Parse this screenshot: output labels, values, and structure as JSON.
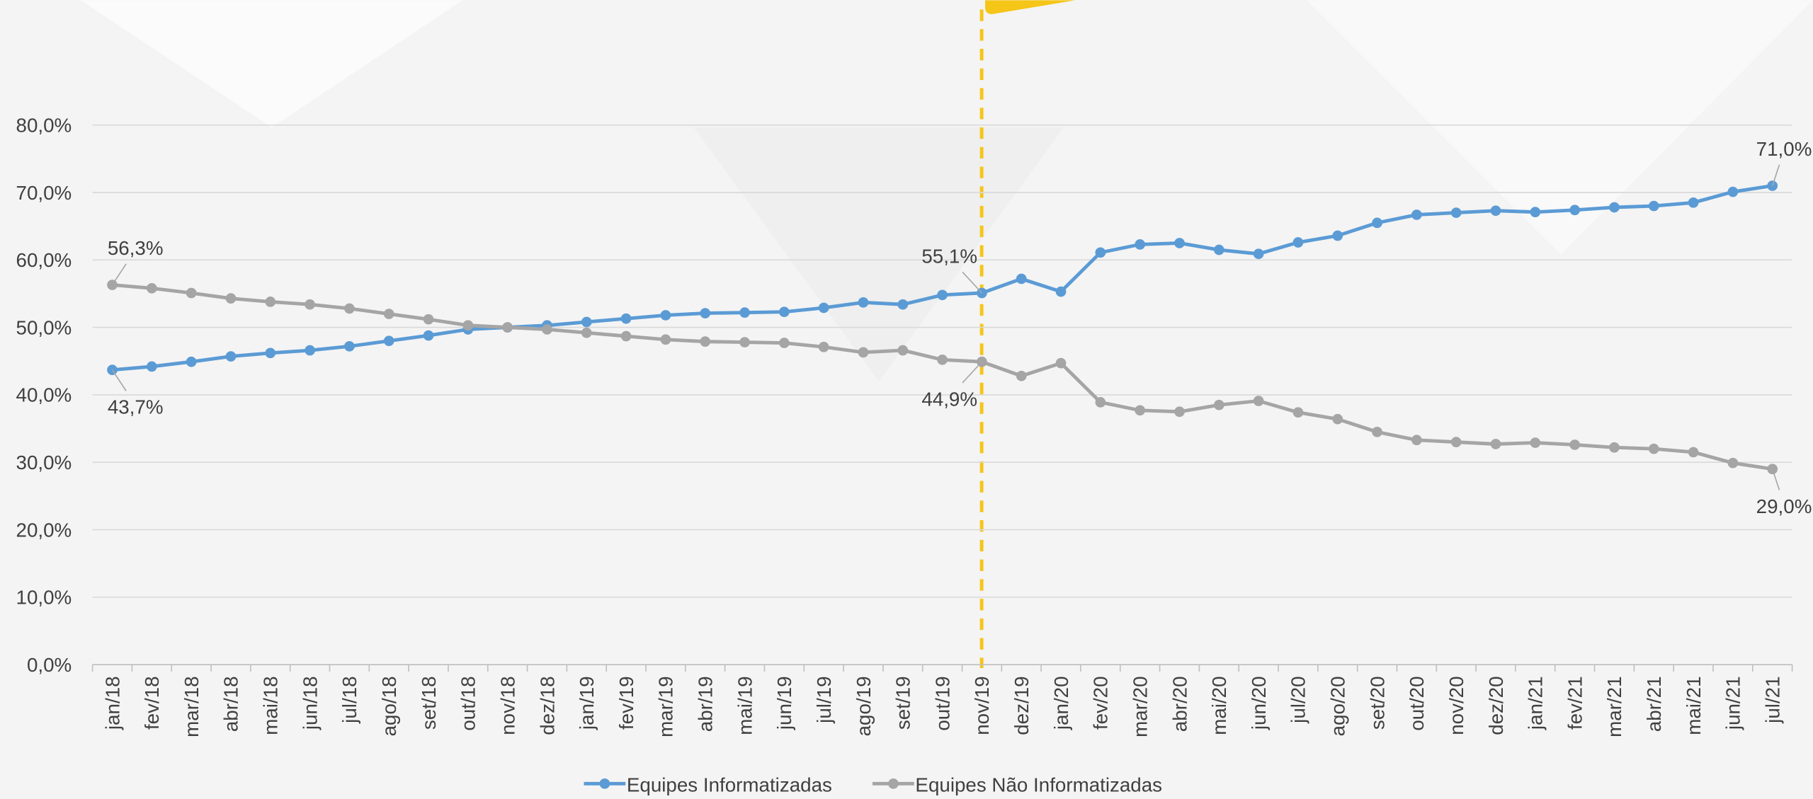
{
  "chart_data": {
    "type": "line",
    "categories": [
      "jan/18",
      "fev/18",
      "mar/18",
      "abr/18",
      "mai/18",
      "jun/18",
      "jul/18",
      "ago/18",
      "set/18",
      "out/18",
      "nov/18",
      "dez/18",
      "jan/19",
      "fev/19",
      "mar/19",
      "abr/19",
      "mai/19",
      "jun/19",
      "jul/19",
      "ago/19",
      "set/19",
      "out/19",
      "nov/19",
      "dez/19",
      "jan/20",
      "fev/20",
      "mar/20",
      "abr/20",
      "mai/20",
      "jun/20",
      "jul/20",
      "ago/20",
      "set/20",
      "out/20",
      "nov/20",
      "dez/20",
      "jan/21",
      "fev/21",
      "mar/21",
      "abr/21",
      "mai/21",
      "jun/21",
      "jul/21"
    ],
    "series": [
      {
        "name": "Equipes Informatizadas",
        "color": "#5b9bd5",
        "values": [
          43.7,
          44.2,
          44.9,
          45.7,
          46.2,
          46.6,
          47.2,
          48.0,
          48.8,
          49.7,
          50.0,
          50.3,
          50.8,
          51.3,
          51.8,
          52.1,
          52.2,
          52.3,
          52.9,
          53.7,
          53.4,
          54.8,
          55.1,
          57.2,
          55.3,
          61.1,
          62.3,
          62.5,
          61.5,
          60.9,
          62.6,
          63.6,
          65.5,
          66.7,
          67.0,
          67.3,
          67.1,
          67.4,
          67.8,
          68.0,
          68.5,
          70.1,
          71.0
        ],
        "value_labels": [
          "43,7%",
          null,
          null,
          null,
          null,
          null,
          null,
          null,
          null,
          null,
          null,
          null,
          null,
          null,
          null,
          null,
          null,
          null,
          null,
          null,
          null,
          null,
          "55,1%",
          null,
          null,
          null,
          null,
          null,
          null,
          null,
          null,
          null,
          null,
          null,
          null,
          null,
          null,
          null,
          null,
          null,
          null,
          null,
          "71,0%"
        ]
      },
      {
        "name": "Equipes Não Informatizadas",
        "color": "#a5a5a5",
        "values": [
          56.3,
          55.8,
          55.1,
          54.3,
          53.8,
          53.4,
          52.8,
          52.0,
          51.2,
          50.3,
          50.0,
          49.7,
          49.2,
          48.7,
          48.2,
          47.9,
          47.8,
          47.7,
          47.1,
          46.3,
          46.6,
          45.2,
          44.9,
          42.8,
          44.7,
          38.9,
          37.7,
          37.5,
          38.5,
          39.1,
          37.4,
          36.4,
          34.5,
          33.3,
          33.0,
          32.7,
          32.9,
          32.6,
          32.2,
          32.0,
          31.5,
          29.9,
          29.0
        ],
        "value_labels": [
          "56,3%",
          null,
          null,
          null,
          null,
          null,
          null,
          null,
          null,
          null,
          null,
          null,
          null,
          null,
          null,
          null,
          null,
          null,
          null,
          null,
          null,
          null,
          "44,9%",
          null,
          null,
          null,
          null,
          null,
          null,
          null,
          null,
          null,
          null,
          null,
          null,
          null,
          null,
          null,
          null,
          null,
          null,
          null,
          "29,0%"
        ]
      }
    ],
    "ylim": [
      0,
      80
    ],
    "yticks": [
      {
        "value": 0,
        "label": "0,0%"
      },
      {
        "value": 10,
        "label": "10,0%"
      },
      {
        "value": 20,
        "label": "20,0%"
      },
      {
        "value": 30,
        "label": "30,0%"
      },
      {
        "value": 40,
        "label": "40,0%"
      },
      {
        "value": 50,
        "label": "50,0%"
      },
      {
        "value": 60,
        "label": "60,0%"
      },
      {
        "value": 70,
        "label": "70,0%"
      },
      {
        "value": 80,
        "label": "80,0%"
      }
    ],
    "grid": true,
    "legend": "bottom"
  }
}
